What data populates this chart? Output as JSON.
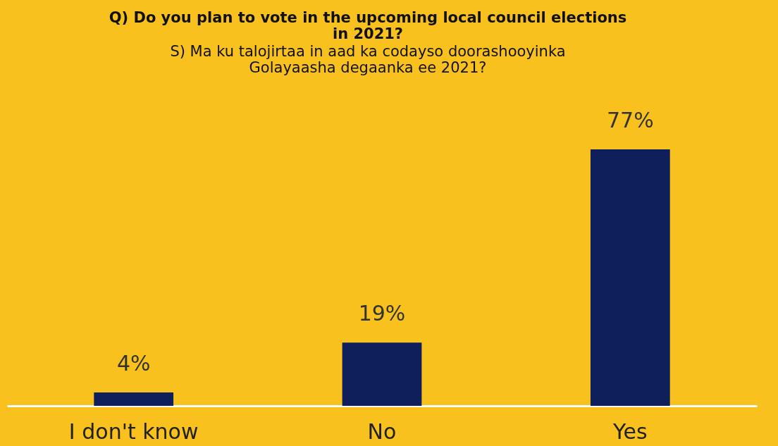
{
  "chart_data": {
    "type": "bar",
    "title": "Q) Do you plan to vote in the upcoming local council elections\nin 2021?",
    "subtitle": "S) Ma ku talojirtaa in aad ka codayso doorashooyinka\nGolayaasha degaanka ee 2021?",
    "categories": [
      "I don't know",
      "No",
      "Yes"
    ],
    "values": [
      4,
      19,
      77
    ],
    "value_labels": [
      "4%",
      "19%",
      "77%"
    ],
    "color": "#0f1f5c"
  }
}
